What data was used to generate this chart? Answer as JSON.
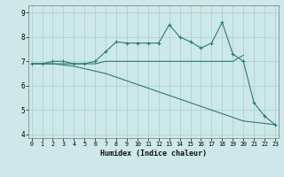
{
  "xlabel": "Humidex (Indice chaleur)",
  "x_values": [
    0,
    1,
    2,
    3,
    4,
    5,
    6,
    7,
    8,
    9,
    10,
    11,
    12,
    13,
    14,
    15,
    16,
    17,
    18,
    19,
    20,
    21,
    22,
    23
  ],
  "line1": [
    6.9,
    6.9,
    7.0,
    7.0,
    6.9,
    6.9,
    7.0,
    7.4,
    7.8,
    7.75,
    7.75,
    7.75,
    7.75,
    8.5,
    8.0,
    7.8,
    7.55,
    7.75,
    8.6,
    7.3,
    7.0,
    5.3,
    4.75,
    4.4
  ],
  "line2": [
    6.9,
    6.9,
    6.9,
    6.9,
    6.9,
    6.9,
    6.9,
    7.0,
    7.0,
    7.0,
    7.0,
    7.0,
    7.0,
    7.0,
    7.0,
    7.0,
    7.0,
    7.0,
    7.0,
    7.0,
    7.25,
    null,
    null,
    null
  ],
  "line3": [
    6.9,
    6.9,
    6.9,
    6.85,
    6.8,
    6.7,
    6.6,
    6.5,
    6.35,
    6.2,
    6.05,
    5.9,
    5.75,
    5.6,
    5.45,
    5.3,
    5.15,
    5.0,
    4.85,
    4.7,
    4.55,
    4.5,
    4.45,
    4.4
  ],
  "line_color": "#2a7d6e",
  "bg_color": "#cde8e8",
  "grid_color": "#aacece",
  "ylim": [
    3.85,
    9.3
  ],
  "xlim": [
    -0.3,
    23.3
  ],
  "yticks": [
    4,
    5,
    6,
    7,
    8,
    9
  ],
  "xtick_labels": [
    "0",
    "1",
    "2",
    "3",
    "4",
    "5",
    "6",
    "7",
    "8",
    "9",
    "10",
    "11",
    "12",
    "13",
    "14",
    "15",
    "16",
    "17",
    "18",
    "19",
    "20",
    "21",
    "22",
    "23"
  ]
}
